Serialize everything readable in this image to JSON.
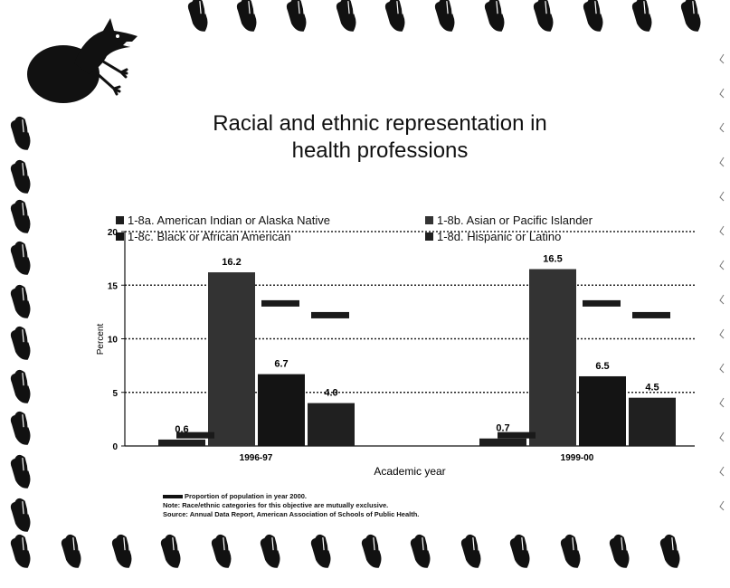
{
  "title_line1": "Racial and ethnic representation in",
  "title_line2": "health professions",
  "legend": [
    {
      "label": "1-8a. American Indian or Alaska Native",
      "color": "#1e1e1e"
    },
    {
      "label": "1-8b. Asian or Pacific Islander",
      "color": "#333333"
    },
    {
      "label": "1-8c. Black or African American",
      "color": "#141414"
    },
    {
      "label": "1-8d. Hispanic or Latino",
      "color": "#202020"
    }
  ],
  "notes": {
    "proportion_key": "Proportion of population in year 2000.",
    "note": "Note: Race/ethnic categories for this objective are mutually exclusive.",
    "source": "Source: Annual Data Report, American Association of Schools of Public Health."
  },
  "chart_data": {
    "type": "bar",
    "categories": [
      "1996-97",
      "1999-00"
    ],
    "series": [
      {
        "name": "1-8a. American Indian or Alaska Native",
        "values": [
          0.6,
          0.7
        ],
        "labels": [
          "0.6",
          "0.7"
        ]
      },
      {
        "name": "1-8b. Asian or Pacific Islander",
        "values": [
          16.2,
          16.5
        ],
        "labels": [
          "16.2",
          "16.5"
        ]
      },
      {
        "name": "1-8c. Black or African American",
        "values": [
          6.7,
          6.5
        ],
        "labels": [
          "6.7",
          "6.5"
        ]
      },
      {
        "name": "1-8d. Hispanic or Latino",
        "values": [
          4.0,
          4.5
        ],
        "labels": [
          "4.0",
          "4.5"
        ]
      }
    ],
    "population_2000": [
      1.0,
      13.3,
      12.2
    ],
    "population_2000_label": "Proportion of population in year 2000.",
    "xlabel": "Academic year",
    "ylabel": "Percent",
    "ylim": [
      0,
      20
    ],
    "yticks": [
      0,
      5,
      10,
      15,
      20
    ],
    "grid": true,
    "colors": [
      "#1e1e1e",
      "#333333",
      "#141414",
      "#202020"
    ],
    "marker_color": "#1a1a1a"
  }
}
